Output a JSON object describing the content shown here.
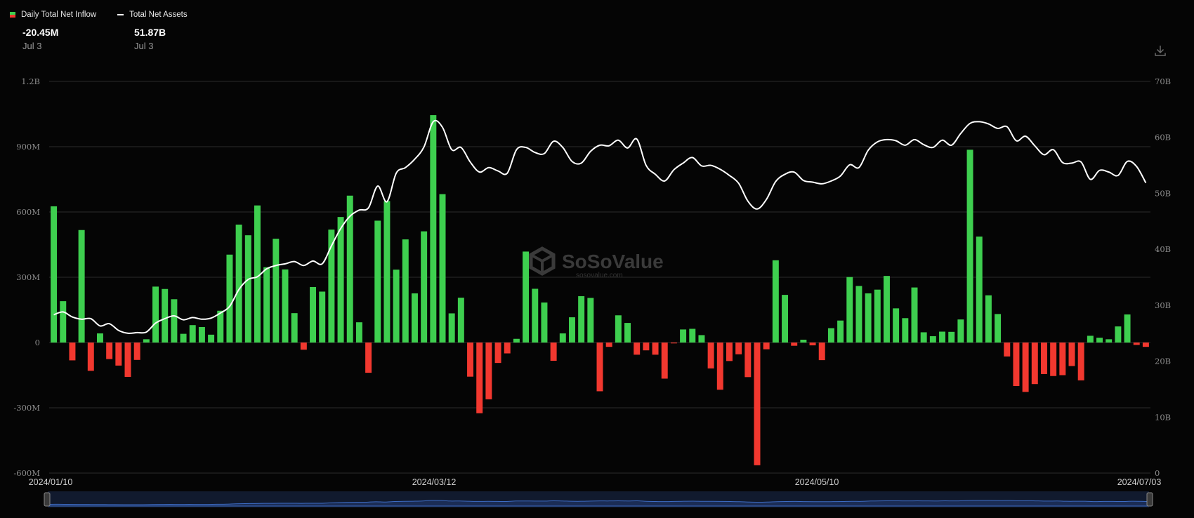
{
  "legend": {
    "inflow_label": "Daily Total Net Inflow",
    "assets_label": "Total Net Assets"
  },
  "readouts": {
    "inflow_value": "-20.45M",
    "inflow_date": "Jul 3",
    "assets_value": "51.87B",
    "assets_date": "Jul 3"
  },
  "toolbar": {
    "download_icon": "download-icon"
  },
  "watermark": {
    "brand": "SoSoValue",
    "site": "sosovalue.com"
  },
  "colors": {
    "positive": "#3ecf4f",
    "negative": "#f2382f",
    "line": "#ffffff",
    "grid": "#2b2b2b",
    "navigator_fill": "#1b2d55",
    "navigator_line": "#3d6cc4"
  },
  "chart_data": {
    "type": "bar",
    "series_type_secondary": "line",
    "x_tick_labels": [
      "2024/01/10",
      "2024/03/12",
      "2024/05/10",
      "2024/07/03"
    ],
    "y_left": {
      "tick_labels": [
        "-600M",
        "-300M",
        "0",
        "300M",
        "600M",
        "900M",
        "1.2B"
      ],
      "range_millions": [
        -600,
        1200
      ]
    },
    "y_right": {
      "tick_labels": [
        "0",
        "10B",
        "20B",
        "30B",
        "40B",
        "50B",
        "60B",
        "70B"
      ],
      "range_billions": [
        0,
        70
      ]
    },
    "grid": true,
    "legend_position": "top-left",
    "series": [
      {
        "name": "Daily Total Net Inflow",
        "unit": "M",
        "values": [
          626,
          190,
          -82,
          517,
          -130,
          42,
          -76,
          -106,
          -158,
          -80,
          15,
          257,
          246,
          199,
          40,
          80,
          71,
          36,
          146,
          404,
          542,
          493,
          630,
          346,
          477,
          336,
          135,
          -33,
          255,
          234,
          519,
          577,
          675,
          93,
          -139,
          560,
          650,
          335,
          474,
          226,
          511,
          1045,
          682,
          134,
          206,
          -157,
          -325,
          -261,
          -94,
          -50,
          17,
          418,
          247,
          184,
          -84,
          42,
          116,
          213,
          205,
          -224,
          -20,
          125,
          90,
          -56,
          -36,
          -56,
          -166,
          -4,
          60,
          63,
          34,
          -119,
          -217,
          -85,
          -54,
          -159,
          -564,
          -31,
          378,
          219,
          -15,
          13,
          -13,
          -81,
          66,
          101,
          301,
          260,
          226,
          243,
          306,
          157,
          112,
          253,
          47,
          29,
          50,
          49,
          106,
          886,
          487,
          217,
          131,
          -64,
          -200,
          -227,
          -191,
          -145,
          -154,
          -150,
          -108,
          -174,
          31,
          22,
          15,
          74,
          129,
          -11,
          -20
        ]
      },
      {
        "name": "Total Net Assets",
        "unit": "B",
        "values": [
          28.3,
          28.8,
          27.9,
          27.5,
          27.6,
          26.3,
          26.7,
          25.5,
          25.0,
          25.1,
          25.2,
          26.8,
          27.6,
          28.1,
          27.4,
          27.8,
          27.5,
          27.7,
          28.6,
          29.8,
          32.8,
          34.6,
          35.1,
          36.5,
          37.1,
          37.4,
          37.8,
          37.1,
          37.9,
          37.4,
          40.6,
          43.7,
          45.9,
          47.0,
          47.4,
          51.3,
          48.5,
          53.6,
          54.6,
          56.1,
          58.3,
          62.8,
          61.8,
          57.8,
          58.2,
          55.6,
          53.8,
          54.6,
          54.0,
          53.6,
          57.8,
          58.2,
          57.3,
          57.1,
          59.3,
          58.2,
          55.7,
          55.4,
          57.5,
          58.6,
          58.5,
          59.5,
          58.1,
          59.7,
          55.0,
          53.4,
          52.2,
          54.2,
          55.4,
          56.4,
          54.9,
          55.0,
          54.3,
          53.2,
          51.8,
          48.6,
          47.2,
          48.9,
          52.1,
          53.4,
          53.8,
          52.3,
          52.0,
          51.7,
          52.2,
          53.1,
          55.1,
          54.6,
          57.7,
          59.2,
          59.6,
          59.4,
          58.6,
          59.6,
          58.7,
          58.2,
          59.5,
          58.6,
          60.7,
          62.5,
          62.8,
          62.4,
          61.6,
          61.9,
          59.4,
          60.2,
          58.5,
          56.9,
          57.8,
          55.5,
          55.4,
          55.6,
          52.5,
          54.1,
          53.8,
          53.2,
          55.7,
          54.8,
          51.87
        ]
      }
    ]
  }
}
